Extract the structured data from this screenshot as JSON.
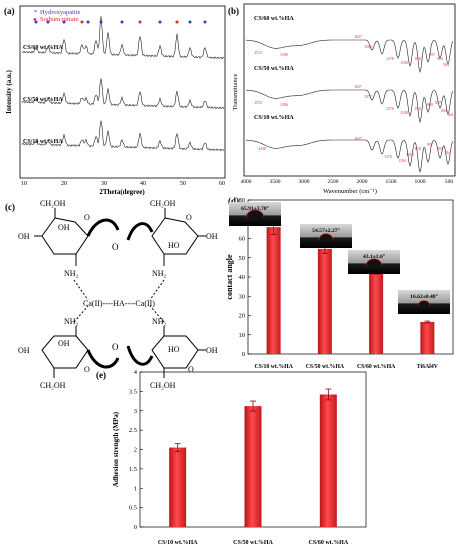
{
  "panels": {
    "a": {
      "label": "(a)",
      "legend": [
        {
          "marker": "*",
          "text": "Hydroxyapatite",
          "color": "#3b3bd0"
        },
        {
          "marker": "●",
          "text": "Sodium nitrate",
          "color": "#e0262a"
        }
      ],
      "ylabel": "Intensity (a.u.)",
      "xlabel": "2Theta(degree)",
      "xticks": [
        "10",
        "20",
        "30",
        "40",
        "50",
        "60"
      ],
      "curves": [
        "CS/60 wt.%HA",
        "CS/50 wt.%HA",
        "CS/10 wt.%HA"
      ]
    },
    "b": {
      "label": "(b)",
      "ylabel": "Transmittance",
      "xlabel": "Wavenumber (cm⁻¹)",
      "xticks": [
        "4000",
        "3500",
        "3000",
        "2500",
        "2000",
        "1500",
        "1000",
        "500"
      ],
      "curves": [
        "CS/60 wt.%HA",
        "CS/50 wt.%HA",
        "CS/10 wt.%HA"
      ],
      "peak_labels": {
        "top": [
          "3572",
          "3180",
          "1637",
          "1563",
          "1376",
          "1106",
          "1031",
          "957",
          "804",
          "564"
        ],
        "mid": [
          "3572",
          "3186",
          "1637",
          "1577",
          "1376",
          "1108",
          "1031",
          "960",
          "857",
          "604",
          "564"
        ],
        "bot": [
          "3438",
          "1637",
          "1376",
          "1104",
          "1050",
          "1031",
          "957",
          "604",
          "564"
        ]
      }
    },
    "c": {
      "label": "(c)",
      "texts": {
        "ch2oh": "CH₂OH",
        "oh": "OH",
        "ho": "HO",
        "nh2": "NH₂",
        "o": "O",
        "chain": "Ca(II)----HA----Ca(II)"
      }
    },
    "d": {
      "label": "(d)"
    },
    "e": {
      "label": "(e)"
    }
  },
  "chart_data": [
    {
      "type": "bar",
      "title": "",
      "xlabel": "",
      "ylabel": "contact angle",
      "categories": [
        "CS/10 wt.%HA",
        "CS/50 wt.%HA",
        "CS/60 wt.%HA",
        "Ti6Al4V"
      ],
      "values": [
        65.91,
        54.57,
        43.1,
        16.62
      ],
      "errors": [
        3.78,
        2.27,
        1.6,
        0.48
      ],
      "value_labels": [
        "65.91±3.78°",
        "54.57±2.27°",
        "43.1±1.6°",
        "16.62±0.48°"
      ],
      "ylim": [
        0,
        80
      ],
      "yticks": [
        "0",
        "10",
        "20",
        "30",
        "40",
        "50",
        "60",
        "70",
        "80"
      ],
      "color": "#e8262a"
    },
    {
      "type": "bar",
      "title": "",
      "xlabel": "",
      "ylabel": "Adhesion strength (MPa)",
      "categories": [
        "CS/10 wt.%HA",
        "CS/50 wt.%HA",
        "CS/60 wt.%HA"
      ],
      "values": [
        2.05,
        3.12,
        3.42
      ],
      "errors": [
        0.1,
        0.13,
        0.14
      ],
      "ylim": [
        0,
        4
      ],
      "yticks": [
        "0",
        "0.5",
        "1",
        "1.5",
        "2",
        "2.5",
        "3",
        "3.5",
        "4"
      ],
      "color": "#e8262a"
    }
  ]
}
